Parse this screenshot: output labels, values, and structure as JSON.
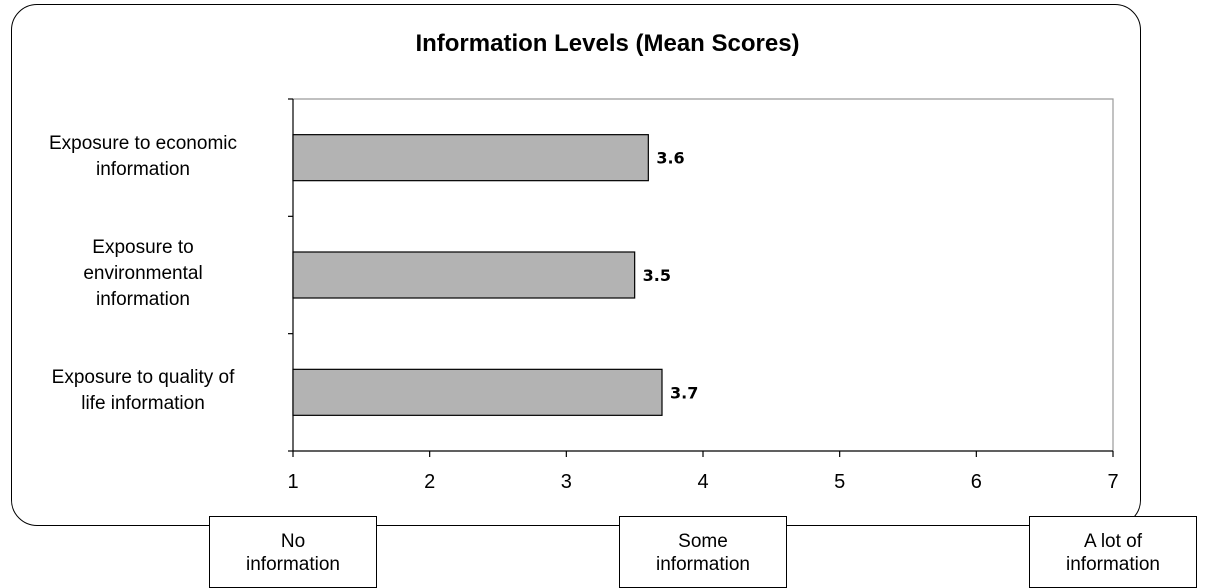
{
  "chart_data": {
    "type": "bar",
    "orientation": "horizontal",
    "title": "Information Levels (Mean Scores)",
    "categories": [
      "Exposure to economic\ninformation",
      "Exposure to\nenvironmental\ninformation",
      "Exposure to quality of\nlife information"
    ],
    "values": [
      3.6,
      3.5,
      3.7
    ],
    "data_labels": [
      "3.6",
      "3.5",
      "3.7"
    ],
    "xlim": [
      1,
      7
    ],
    "x_ticks": [
      "1",
      "2",
      "3",
      "4",
      "5",
      "6",
      "7"
    ],
    "grid": false,
    "bar_color": "#b3b3b3",
    "scale_anchors": [
      {
        "value": 1,
        "label": "No\ninformation"
      },
      {
        "value": 4,
        "label": "Some\ninformation"
      },
      {
        "value": 7,
        "label": "A lot of\ninformation"
      }
    ]
  }
}
